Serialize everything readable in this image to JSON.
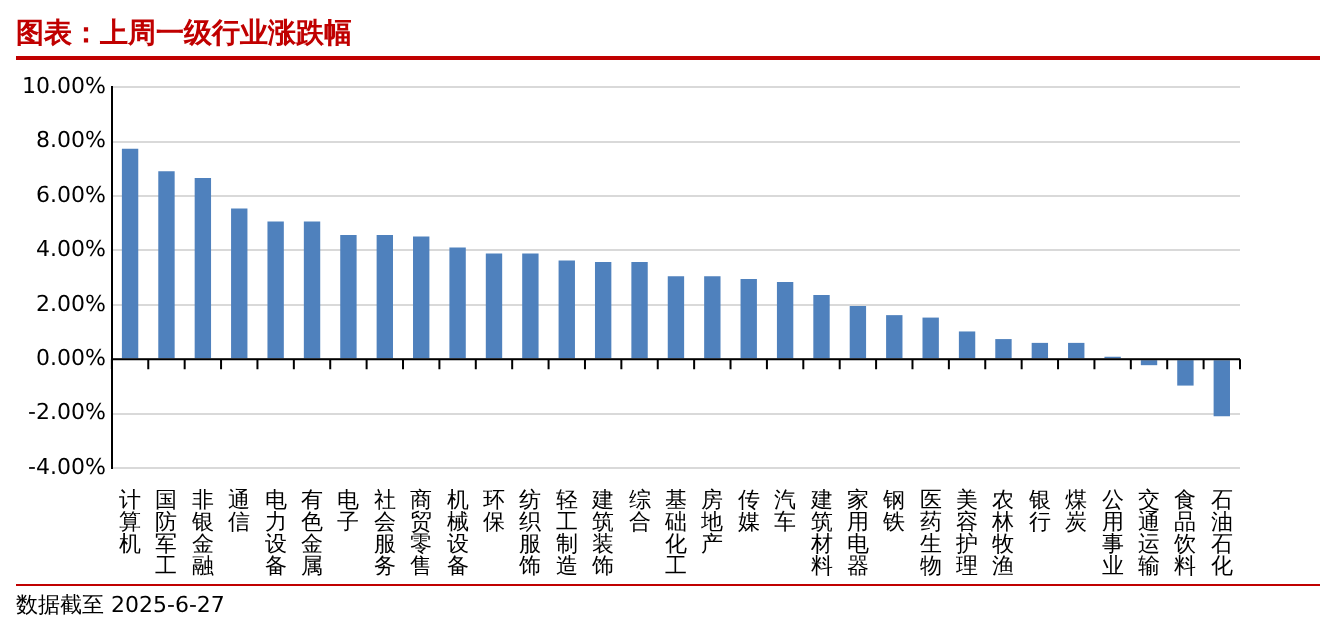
{
  "chart_data": {
    "type": "bar",
    "title": "图表：上周一级行业涨跌幅",
    "categories": [
      "计算机",
      "国防军工",
      "非银金融",
      "通信",
      "电力设备",
      "有色金属",
      "电子",
      "社会服务",
      "商贸零售",
      "机械设备",
      "环保",
      "纺织服饰",
      "轻工制造",
      "建筑装饰",
      "综合",
      "基础化工",
      "房地产",
      "传媒",
      "汽车",
      "建筑材料",
      "家用电器",
      "钢铁",
      "医药生物",
      "美容护理",
      "农林牧渔",
      "银行",
      "煤炭",
      "公用事业",
      "交通运输",
      "食品饮料",
      "石油石化"
    ],
    "values": [
      7.74,
      6.91,
      6.66,
      5.54,
      5.06,
      5.06,
      4.57,
      4.57,
      4.51,
      4.11,
      3.89,
      3.89,
      3.63,
      3.57,
      3.57,
      3.05,
      3.05,
      2.95,
      2.84,
      2.36,
      1.96,
      1.62,
      1.53,
      1.02,
      0.74,
      0.6,
      0.6,
      0.09,
      -0.22,
      -0.97,
      -2.1
    ],
    "color": "#4f81bd",
    "ylim": [
      -4,
      10
    ],
    "yticks": [
      {
        "value": -4,
        "label": "-4.00%"
      },
      {
        "value": -2,
        "label": "-2.00%"
      },
      {
        "value": 0,
        "label": "0.00%"
      },
      {
        "value": 2,
        "label": "2.00%"
      },
      {
        "value": 4,
        "label": "4.00%"
      },
      {
        "value": 6,
        "label": "6.00%"
      },
      {
        "value": 8,
        "label": "8.00%"
      },
      {
        "value": 10,
        "label": "10.00%"
      }
    ],
    "grid": "y",
    "annotations": [
      "数据截至 2025-6-27"
    ]
  }
}
